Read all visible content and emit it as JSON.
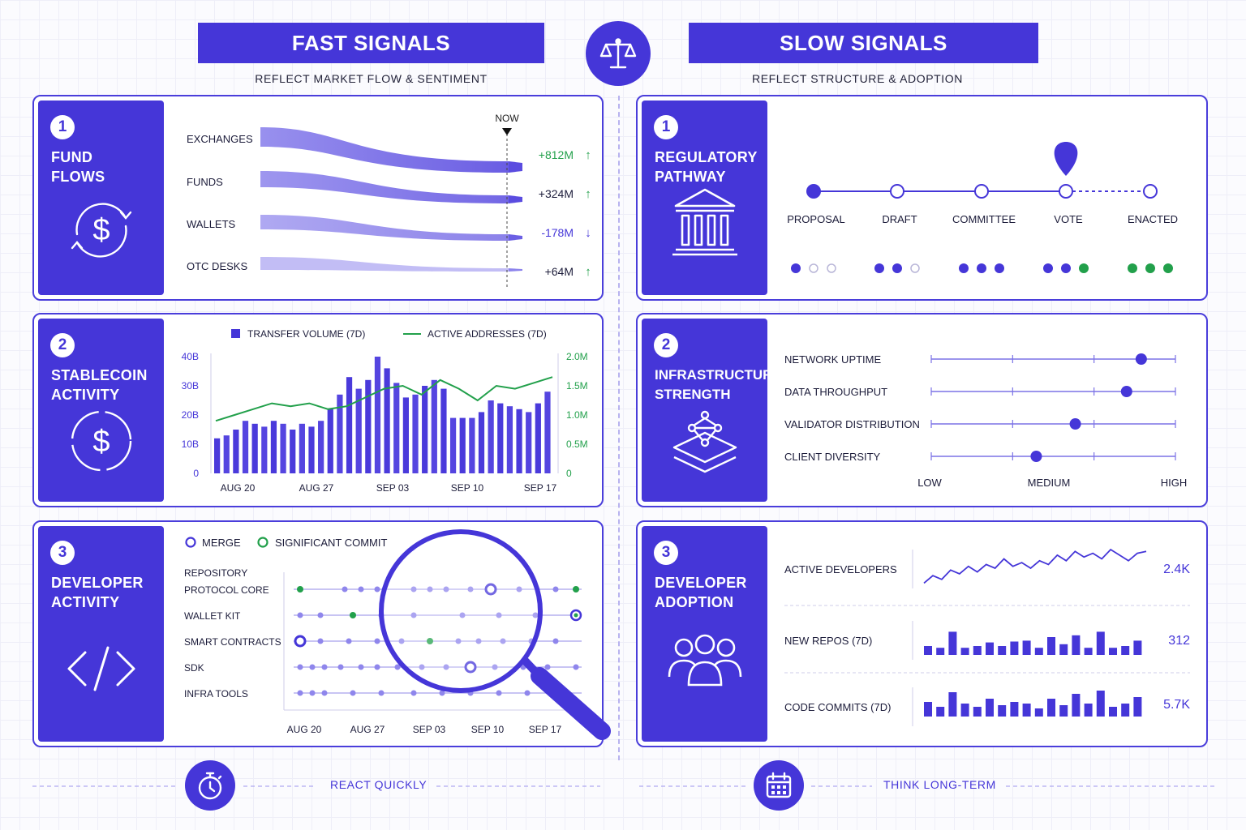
{
  "fast": {
    "title": "FAST SIGNALS",
    "subtitle": "REFLECT MARKET FLOW & SENTIMENT"
  },
  "slow": {
    "title": "SLOW SIGNALS",
    "subtitle": "REFLECT STRUCTURE & ADOPTION"
  },
  "colors": {
    "accent": "#4536d8",
    "green": "#22a04b",
    "light": "#8f86ec"
  },
  "fund_flows": {
    "num": "1",
    "title": "FUND FLOWS",
    "icon": "dollar-cycle-icon",
    "now": "NOW",
    "rows": [
      {
        "label": "EXCHANGES",
        "value": "+812M",
        "dir": "up"
      },
      {
        "label": "FUNDS",
        "value": "+324M",
        "dir": "up"
      },
      {
        "label": "WALLETS",
        "value": "-178M",
        "dir": "down"
      },
      {
        "label": "OTC DESKS",
        "value": "+64M",
        "dir": "up"
      }
    ]
  },
  "stablecoin": {
    "num": "2",
    "title": "STABLECOIN ACTIVITY",
    "icon": "dollar-circle-icon"
  },
  "developer_activity": {
    "num": "3",
    "title": "DEVELOPER ACTIVITY",
    "icon": "code-icon",
    "legend_merge": "MERGE",
    "legend_commit": "SIGNIFICANT COMMIT",
    "repo_header": "REPOSITORY",
    "repos": [
      "PROTOCOL CORE",
      "WALLET KIT",
      "SMART CONTRACTS",
      "SDK",
      "INFRA TOOLS"
    ],
    "dates": [
      "AUG 20",
      "AUG 27",
      "SEP 03",
      "SEP 10",
      "SEP 17"
    ]
  },
  "regulatory": {
    "num": "1",
    "title": "REGULATORY PATHWAY",
    "icon": "institution-icon",
    "stages": [
      "PROPOSAL",
      "DRAFT",
      "COMMITTEE",
      "VOTE",
      "ENACTED"
    ],
    "current_stage": "VOTE"
  },
  "infrastructure": {
    "num": "2",
    "title": "INFRASTRUCTURE STRENGTH",
    "icon": "layers-network-icon",
    "metrics": [
      {
        "label": "NETWORK UPTIME",
        "level": 0.86
      },
      {
        "label": "DATA THROUGHPUT",
        "level": 0.8
      },
      {
        "label": "VALIDATOR DISTRIBUTION",
        "level": 0.59
      },
      {
        "label": "CLIENT DIVERSITY",
        "level": 0.43
      }
    ],
    "scale": [
      "LOW",
      "MEDIUM",
      "HIGH"
    ]
  },
  "dev_adoption": {
    "num": "3",
    "title": "DEVELOPER ADOPTION",
    "icon": "people-icon",
    "rows": [
      {
        "label": "ACTIVE DEVELOPERS",
        "value": "2.4K"
      },
      {
        "label": "NEW REPOS (7D)",
        "value": "312"
      },
      {
        "label": "CODE COMMITS (7D)",
        "value": "5.7K"
      }
    ]
  },
  "footer": {
    "left": "REACT QUICKLY",
    "right": "THINK LONG-TERM"
  },
  "chart_data": {
    "type": "bar",
    "legend": [
      "TRANSFER VOLUME (7D)",
      "ACTIVE ADDRESSES (7D)"
    ],
    "xticks": [
      "AUG 20",
      "AUG 27",
      "SEP 03",
      "SEP 10",
      "SEP 17"
    ],
    "yticks_left": [
      "0",
      "10B",
      "20B",
      "30B",
      "40B"
    ],
    "yticks_right": [
      "0",
      "0.5M",
      "1.0M",
      "1.5M",
      "2.0M"
    ],
    "ylim_left": [
      0,
      40
    ],
    "ylim_right": [
      0,
      2.0
    ],
    "series": [
      {
        "name": "TRANSFER VOLUME (7D)",
        "type": "bar",
        "axis": "left",
        "values": [
          12,
          13,
          15,
          18,
          17,
          16,
          18,
          17,
          15,
          17,
          16,
          18,
          22,
          27,
          33,
          29,
          32,
          40,
          36,
          31,
          26,
          27,
          30,
          32,
          29,
          19,
          19,
          19,
          21,
          25,
          24,
          23,
          22,
          21,
          24,
          28
        ]
      },
      {
        "name": "ACTIVE ADDRESSES (7D)",
        "type": "line",
        "axis": "right",
        "values": [
          0.9,
          1.0,
          1.1,
          1.2,
          1.15,
          1.2,
          1.1,
          1.15,
          1.3,
          1.45,
          1.5,
          1.35,
          1.6,
          1.45,
          1.25,
          1.5,
          1.45,
          1.55,
          1.65
        ]
      }
    ]
  }
}
